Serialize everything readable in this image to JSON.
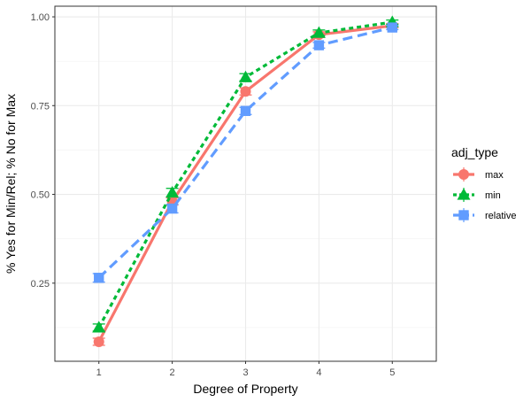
{
  "chart_data": {
    "type": "line",
    "xlabel": "Degree of Property",
    "ylabel": "% Yes for Min/Rel; % No for Max",
    "x": [
      1,
      2,
      3,
      4,
      5
    ],
    "x_tick_labels": [
      "1",
      "2",
      "3",
      "4",
      "5"
    ],
    "xlim": [
      0.4,
      5.6
    ],
    "ylim": [
      0.03,
      1.03
    ],
    "y_ticks": [
      0.25,
      0.5,
      0.75,
      1.0
    ],
    "y_tick_labels": [
      "0.25",
      "0.50",
      "0.75",
      "1.00"
    ],
    "grid": true,
    "legend": {
      "title": "adj_type",
      "position": "right"
    },
    "series": [
      {
        "name": "max",
        "color": "#F8766D",
        "line_style": "solid",
        "marker": "circle",
        "values": [
          0.085,
          0.48,
          0.79,
          0.95,
          0.975
        ],
        "errors": [
          0.01,
          0.01,
          0.01,
          0.008,
          0.006
        ]
      },
      {
        "name": "min",
        "color": "#00BA38",
        "line_style": "dotted",
        "marker": "triangle",
        "values": [
          0.125,
          0.505,
          0.83,
          0.955,
          0.985
        ],
        "errors": [
          0.01,
          0.012,
          0.01,
          0.008,
          0.006
        ]
      },
      {
        "name": "relative",
        "color": "#619CFF",
        "line_style": "dashed",
        "marker": "square",
        "values": [
          0.265,
          0.46,
          0.735,
          0.92,
          0.97
        ],
        "errors": [
          0.012,
          0.012,
          0.01,
          0.008,
          0.006
        ]
      }
    ]
  }
}
